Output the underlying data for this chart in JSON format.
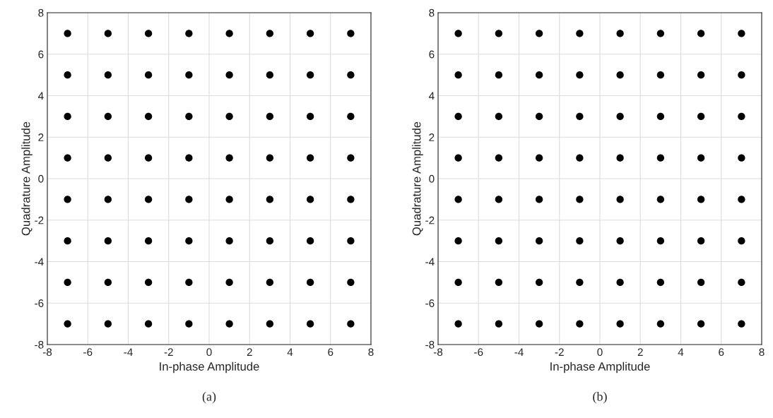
{
  "chart_data": [
    {
      "type": "scatter",
      "xlabel": "In-phase Amplitude",
      "ylabel": "Quadrature Amplitude",
      "annotations": [
        "(a)"
      ],
      "xlim": [
        -8,
        8
      ],
      "ylim": [
        -8,
        8
      ],
      "xticks": [
        -8,
        -6,
        -4,
        -2,
        0,
        2,
        4,
        6,
        8
      ],
      "yticks": [
        -8,
        -6,
        -4,
        -2,
        0,
        2,
        4,
        6,
        8
      ],
      "grid": true,
      "marker": "circle",
      "series": [
        {
          "color": "#000000",
          "x": [
            -7,
            -5,
            -3,
            -1,
            1,
            3,
            5,
            7,
            -7,
            -5,
            -3,
            -1,
            1,
            3,
            5,
            7,
            -7,
            -5,
            -3,
            -1,
            1,
            3,
            5,
            7,
            -7,
            -5,
            -3,
            -1,
            1,
            3,
            5,
            7,
            -7,
            -5,
            -3,
            -1,
            1,
            3,
            5,
            7,
            -7,
            -5,
            -3,
            -1,
            1,
            3,
            5,
            7,
            -7,
            -5,
            -3,
            -1,
            1,
            3,
            5,
            7,
            -7,
            -5,
            -3,
            -1,
            1,
            3,
            5,
            7
          ],
          "values": [
            7,
            7,
            7,
            7,
            7,
            7,
            7,
            7,
            5,
            5,
            5,
            5,
            5,
            5,
            5,
            5,
            3,
            3,
            3,
            3,
            3,
            3,
            3,
            3,
            1,
            1,
            1,
            1,
            1,
            1,
            1,
            1,
            -1,
            -1,
            -1,
            -1,
            -1,
            -1,
            -1,
            -1,
            -3,
            -3,
            -3,
            -3,
            -3,
            -3,
            -3,
            -3,
            -5,
            -5,
            -5,
            -5,
            -5,
            -5,
            -5,
            -5,
            -7,
            -7,
            -7,
            -7,
            -7,
            -7,
            -7,
            -7
          ]
        }
      ]
    },
    {
      "type": "scatter",
      "xlabel": "In-phase Amplitude",
      "ylabel": "Quadrature Amplitude",
      "annotations": [
        "(b)"
      ],
      "xlim": [
        -8,
        8
      ],
      "ylim": [
        -8,
        8
      ],
      "xticks": [
        -8,
        -6,
        -4,
        -2,
        0,
        2,
        4,
        6,
        8
      ],
      "yticks": [
        -8,
        -6,
        -4,
        -2,
        0,
        2,
        4,
        6,
        8
      ],
      "grid": true,
      "marker": "circle",
      "series": [
        {
          "color": "#000000",
          "x": [
            -7,
            -5,
            -3,
            -1,
            1,
            3,
            5,
            7,
            -7,
            -5,
            -3,
            -1,
            1,
            3,
            5,
            7,
            -7,
            -5,
            -3,
            -1,
            1,
            3,
            5,
            7,
            -7,
            -5,
            -3,
            -1,
            1,
            3,
            5,
            7,
            -7,
            -5,
            -3,
            -1,
            1,
            3,
            5,
            7,
            -7,
            -5,
            -3,
            -1,
            1,
            3,
            5,
            7,
            -7,
            -5,
            -3,
            -1,
            1,
            3,
            5,
            7,
            -7,
            -5,
            -3,
            -1,
            1,
            3,
            5,
            7
          ],
          "values": [
            7,
            7,
            7,
            7,
            7,
            7,
            7,
            7,
            5,
            5,
            5,
            5,
            5,
            5,
            5,
            5,
            3,
            3,
            3,
            3,
            3,
            3,
            3,
            3,
            1,
            1,
            1,
            1,
            1,
            1,
            1,
            1,
            -1,
            -1,
            -1,
            -1,
            -1,
            -1,
            -1,
            -1,
            -3,
            -3,
            -3,
            -3,
            -3,
            -3,
            -3,
            -3,
            -5,
            -5,
            -5,
            -5,
            -5,
            -5,
            -5,
            -5,
            -7,
            -7,
            -7,
            -7,
            -7,
            -7,
            -7,
            -7
          ]
        }
      ]
    }
  ]
}
